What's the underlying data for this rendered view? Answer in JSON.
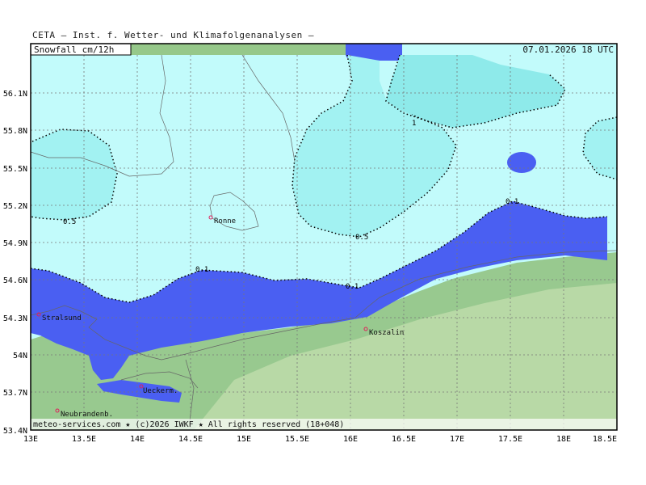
{
  "header": {
    "title": "CETA – Inst. f. Wetter- und Klimafolgenanalysen –",
    "parameter": "Snowfall  cm/12h",
    "valid_time": "07.01.2026 18 UTC"
  },
  "axes": {
    "x_ticks": [
      "13E",
      "13.5E",
      "14E",
      "14.5E",
      "15E",
      "15.5E",
      "16E",
      "16.5E",
      "17E",
      "17.5E",
      "18E",
      "18.5E"
    ],
    "y_ticks": [
      "56.1N",
      "55.8N",
      "55.5N",
      "55.2N",
      "54.9N",
      "54.6N",
      "54.3N",
      "54N",
      "53.7N",
      "53.4N"
    ]
  },
  "cities": [
    {
      "name": "Ronne",
      "lon": 14.7,
      "lat": 55.1
    },
    {
      "name": "Stralsund",
      "lon": 13.1,
      "lat": 54.3
    },
    {
      "name": "Koszalin",
      "lon": 16.2,
      "lat": 54.2
    },
    {
      "name": "Ueckerm.",
      "lon": 14.05,
      "lat": 53.75
    },
    {
      "name": "Neubrandenb.",
      "lon": 13.25,
      "lat": 53.55
    }
  ],
  "contour_labels": [
    "0.5",
    "0.5",
    "1",
    "0.1",
    "0.1",
    "0.1"
  ],
  "footer": "meteo-services.com ★ (c)2026 IWKF ★ All rights reserved (18+048)",
  "colors": {
    "snow_01_05": "#c2fbfb",
    "snow_05_1": "#a2f2f2",
    "snow_gt_1": "#8eeaea",
    "precip_band": "#4a5ff2",
    "land_dark": "#98c98f",
    "land_light": "#b8d9a6",
    "header_bg": "#96c88a"
  }
}
